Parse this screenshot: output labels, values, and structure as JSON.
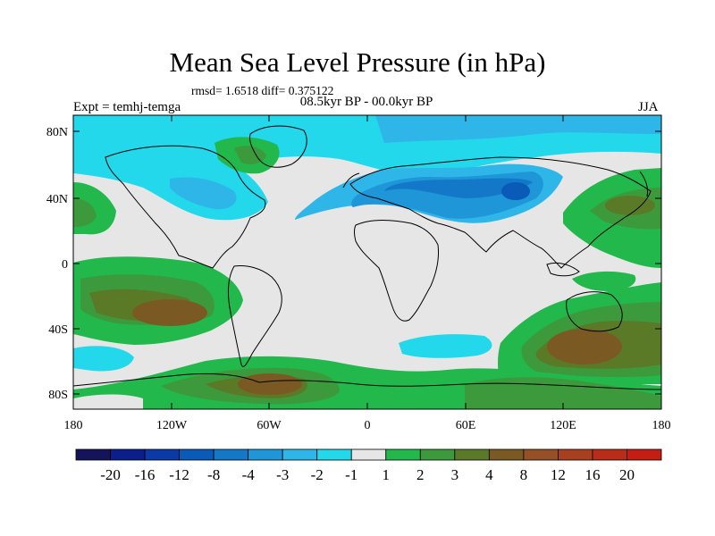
{
  "title": "Mean Sea Level Pressure (in hPa)",
  "stats": "rmsd= 1.6518 diff= 0.375122",
  "period": "08.5kyr BP - 00.0kyr BP",
  "experiment": "Expt = temhj-temga",
  "season": "JJA",
  "y_ticks": [
    "80N",
    "40N",
    "0",
    "40S",
    "80S"
  ],
  "x_ticks": [
    "180",
    "120W",
    "60W",
    "0",
    "60E",
    "120E",
    "180"
  ],
  "legend": {
    "labels": [
      "-20",
      "-16",
      "-12",
      "-8",
      "-4",
      "-3",
      "-2",
      "-1",
      "1",
      "2",
      "3",
      "4",
      "8",
      "12",
      "16",
      "20"
    ],
    "colors": [
      "#14145a",
      "#0c1e8c",
      "#0a3aa8",
      "#0a5ab8",
      "#1478c8",
      "#1e96d8",
      "#2eb6e8",
      "#22d8ea",
      "#e6e6e6",
      "#22b84c",
      "#3c9a3c",
      "#5a7a28",
      "#7a5a22",
      "#965028",
      "#a84020",
      "#b82c18",
      "#c41e14"
    ]
  },
  "chart_data": {
    "type": "heatmap",
    "variable": "Mean Sea Level Pressure difference (hPa)",
    "x_range": [
      -180,
      180
    ],
    "y_range": [
      -90,
      90
    ],
    "levels": [
      -20,
      -16,
      -12,
      -8,
      -4,
      -3,
      -2,
      -1,
      1,
      2,
      3,
      4,
      8,
      12,
      16,
      20
    ]
  }
}
